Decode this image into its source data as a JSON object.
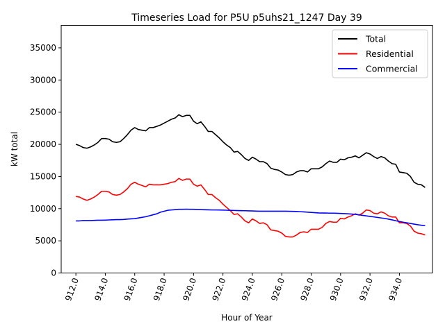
{
  "chart_data": {
    "type": "line",
    "title": "Timeseries Load for P5U p5uhs21_1247  Day 39",
    "xlabel": "Hour of Year",
    "ylabel": "kW total",
    "xlim": [
      911.0,
      936.25
    ],
    "ylim": [
      0,
      38500
    ],
    "xticks": [
      912,
      914,
      916,
      918,
      920,
      922,
      924,
      926,
      928,
      930,
      932,
      934
    ],
    "xtick_labels": [
      "912.0",
      "914.0",
      "916.0",
      "918.0",
      "920.0",
      "922.0",
      "924.0",
      "926.0",
      "928.0",
      "930.0",
      "932.0",
      "934.0"
    ],
    "yticks": [
      0,
      5000,
      10000,
      15000,
      20000,
      25000,
      30000,
      35000
    ],
    "ytick_labels": [
      "0",
      "5000",
      "10000",
      "15000",
      "20000",
      "25000",
      "30000",
      "35000"
    ],
    "legend_position": "top-right",
    "grid": false,
    "x": [
      912.0,
      912.25,
      912.5,
      912.75,
      913.0,
      913.25,
      913.5,
      913.75,
      914.0,
      914.25,
      914.5,
      914.75,
      915.0,
      915.25,
      915.5,
      915.75,
      916.0,
      916.25,
      916.5,
      916.75,
      917.0,
      917.25,
      917.5,
      917.75,
      918.0,
      918.25,
      918.5,
      918.75,
      919.0,
      919.25,
      919.5,
      919.75,
      920.0,
      920.25,
      920.5,
      920.75,
      921.0,
      921.25,
      921.5,
      921.75,
      922.0,
      922.25,
      922.5,
      922.75,
      923.0,
      923.25,
      923.5,
      923.75,
      924.0,
      924.25,
      924.5,
      924.75,
      925.0,
      925.25,
      925.5,
      925.75,
      926.0,
      926.25,
      926.5,
      926.75,
      927.0,
      927.25,
      927.5,
      927.75,
      928.0,
      928.25,
      928.5,
      928.75,
      929.0,
      929.25,
      929.5,
      929.75,
      930.0,
      930.25,
      930.5,
      930.75,
      931.0,
      931.25,
      931.5,
      931.75,
      932.0,
      932.25,
      932.5,
      932.75,
      933.0,
      933.25,
      933.5,
      933.75,
      934.0,
      934.25,
      934.5,
      934.75,
      935.0,
      935.25,
      935.5,
      935.75
    ],
    "series": [
      {
        "name": "Total",
        "color": "#000000",
        "values": [
          20000,
          19800,
          19500,
          19400,
          19600,
          19900,
          20300,
          20900,
          20900,
          20800,
          20400,
          20300,
          20400,
          20900,
          21500,
          22200,
          22600,
          22300,
          22200,
          22100,
          22600,
          22600,
          22800,
          23000,
          23300,
          23600,
          23900,
          24100,
          24600,
          24300,
          24500,
          24500,
          23600,
          23200,
          23500,
          22800,
          22000,
          22000,
          21500,
          21000,
          20400,
          19900,
          19500,
          18800,
          18900,
          18400,
          17800,
          17500,
          18000,
          17700,
          17300,
          17300,
          17000,
          16300,
          16100,
          16000,
          15700,
          15300,
          15200,
          15300,
          15700,
          15900,
          15900,
          15700,
          16200,
          16200,
          16200,
          16500,
          17000,
          17400,
          17200,
          17200,
          17700,
          17600,
          17900,
          18000,
          18200,
          17900,
          18300,
          18700,
          18500,
          18100,
          17800,
          18100,
          17900,
          17400,
          17000,
          16900,
          15700,
          15600,
          15500,
          15000,
          14100,
          13800,
          13700,
          13300
        ]
      },
      {
        "name": "Residential",
        "color": "#ff0000",
        "values": [
          11900,
          11800,
          11500,
          11300,
          11500,
          11800,
          12200,
          12700,
          12700,
          12600,
          12200,
          12100,
          12200,
          12600,
          13100,
          13800,
          14100,
          13800,
          13600,
          13400,
          13800,
          13700,
          13700,
          13700,
          13800,
          13900,
          14100,
          14200,
          14700,
          14400,
          14600,
          14600,
          13800,
          13500,
          13700,
          13000,
          12200,
          12200,
          11700,
          11300,
          10700,
          10200,
          9700,
          9100,
          9200,
          8700,
          8100,
          7800,
          8400,
          8100,
          7700,
          7800,
          7500,
          6700,
          6600,
          6500,
          6200,
          5700,
          5600,
          5600,
          5900,
          6300,
          6400,
          6300,
          6800,
          6800,
          6800,
          7100,
          7700,
          8000,
          7900,
          7900,
          8500,
          8400,
          8700,
          8900,
          9200,
          9000,
          9300,
          9800,
          9700,
          9300,
          9200,
          9500,
          9300,
          8900,
          8700,
          8700,
          7800,
          7800,
          7700,
          7300,
          6500,
          6200,
          6100,
          5900
        ]
      },
      {
        "name": "Commercial",
        "color": "#0000ff",
        "values": [
          8100,
          8100,
          8150,
          8150,
          8150,
          8180,
          8200,
          8200,
          8220,
          8250,
          8270,
          8300,
          8300,
          8320,
          8380,
          8420,
          8450,
          8550,
          8650,
          8750,
          8900,
          9050,
          9200,
          9450,
          9600,
          9750,
          9800,
          9850,
          9900,
          9900,
          9920,
          9900,
          9900,
          9880,
          9850,
          9830,
          9820,
          9800,
          9800,
          9790,
          9780,
          9760,
          9740,
          9720,
          9700,
          9690,
          9680,
          9660,
          9640,
          9620,
          9610,
          9600,
          9600,
          9600,
          9600,
          9600,
          9600,
          9600,
          9590,
          9580,
          9560,
          9530,
          9500,
          9460,
          9420,
          9380,
          9340,
          9320,
          9330,
          9300,
          9300,
          9280,
          9250,
          9230,
          9200,
          9160,
          9120,
          9040,
          8960,
          8880,
          8800,
          8720,
          8640,
          8560,
          8480,
          8380,
          8260,
          8130,
          8000,
          7900,
          7800,
          7700,
          7600,
          7500,
          7420,
          7360
        ]
      }
    ]
  }
}
